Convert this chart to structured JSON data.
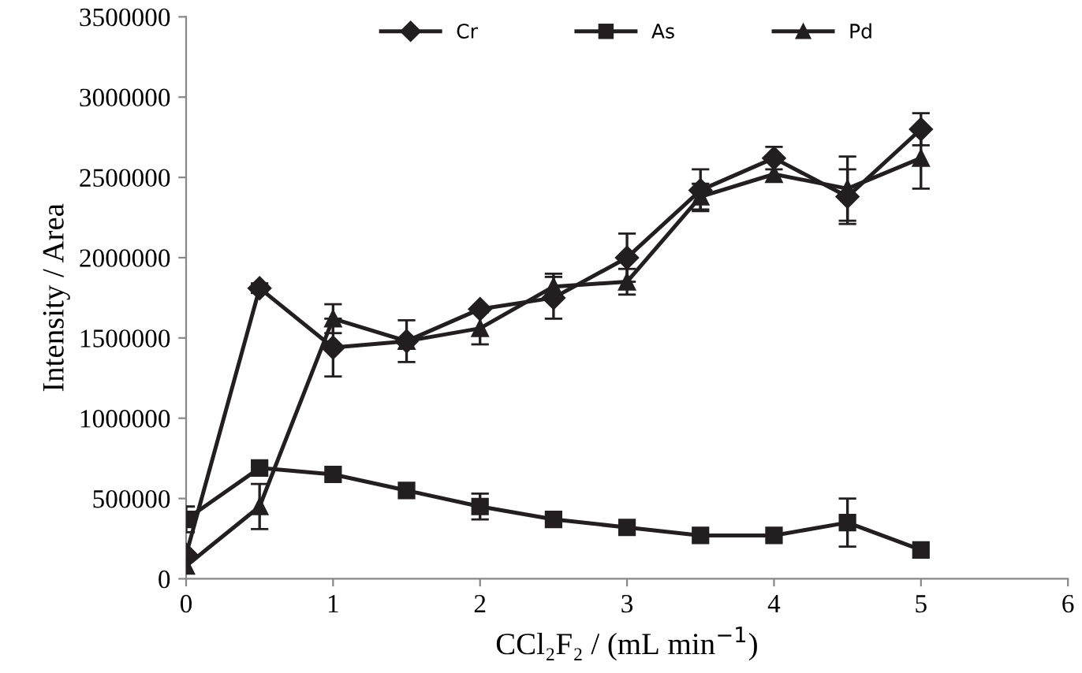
{
  "chart_data": {
    "type": "line",
    "xlabel": "CCl₂F₂ / (mL min$^{−1}$)",
    "ylabel": "Intensity / Area",
    "x": [
      0,
      0.5,
      1,
      1.5,
      2,
      2.5,
      3,
      3.5,
      4,
      4.5,
      5
    ],
    "series": [
      {
        "name": "Cr",
        "color": "#231f20",
        "marker": "diamond",
        "values": [
          150000,
          1810000,
          1440000,
          1480000,
          1680000,
          1750000,
          2000000,
          2420000,
          2620000,
          2380000,
          2800000
        ],
        "errors": [
          null,
          30000,
          180000,
          null,
          null,
          130000,
          150000,
          130000,
          70000,
          170000,
          100000
        ]
      },
      {
        "name": "As",
        "color": "#231f20",
        "marker": "square",
        "values": [
          370000,
          690000,
          650000,
          550000,
          450000,
          370000,
          320000,
          270000,
          270000,
          350000,
          180000
        ],
        "errors": [
          80000,
          null,
          null,
          null,
          80000,
          null,
          null,
          null,
          null,
          150000,
          null
        ]
      },
      {
        "name": "Pd",
        "color": "#231f20",
        "marker": "triangle",
        "values": [
          80000,
          450000,
          1620000,
          1480000,
          1560000,
          1820000,
          1850000,
          2380000,
          2520000,
          2430000,
          2620000
        ],
        "errors": [
          null,
          140000,
          90000,
          130000,
          100000,
          80000,
          80000,
          80000,
          null,
          200000,
          190000
        ]
      }
    ],
    "xlim": [
      0,
      6
    ],
    "xticks": [
      0,
      1,
      2,
      3,
      4,
      5,
      6
    ],
    "ylim": [
      0,
      3500000
    ],
    "yticks": [
      0,
      500000,
      1000000,
      1500000,
      2000000,
      2500000,
      3000000,
      3500000
    ],
    "grid": false,
    "legend": "top",
    "line_style": "solid"
  }
}
